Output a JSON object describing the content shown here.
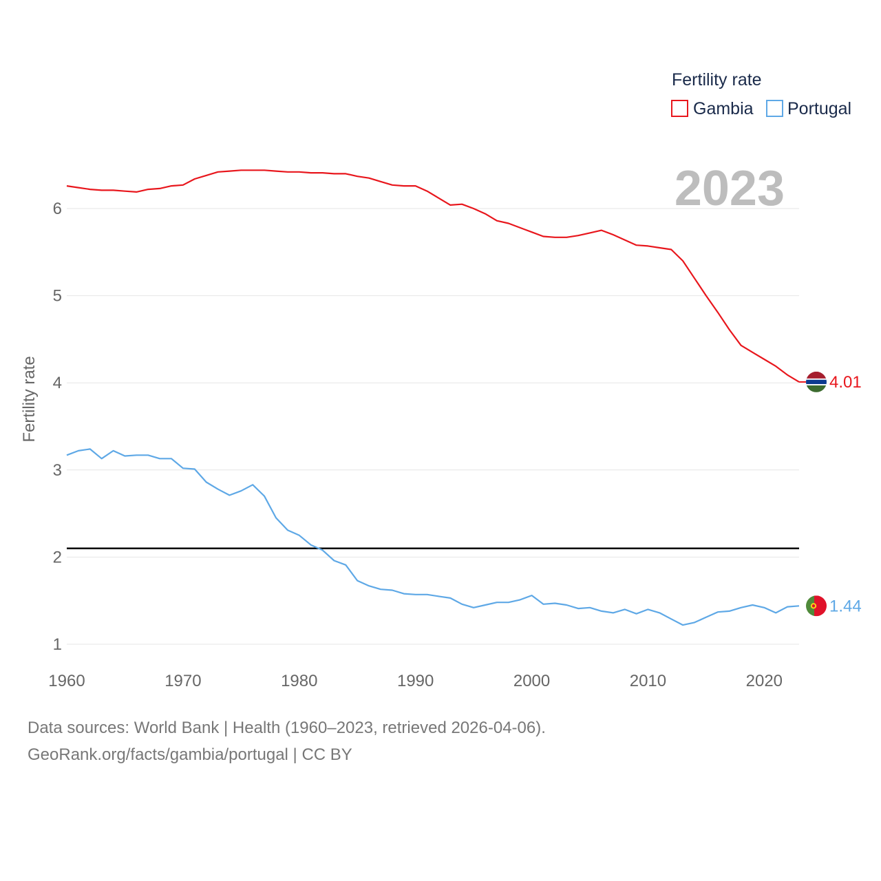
{
  "chart_data": {
    "type": "line",
    "title": "",
    "xlabel": "",
    "ylabel": "Fertility rate",
    "xlim": [
      1960,
      2023
    ],
    "ylim": [
      0.8,
      6.8
    ],
    "x_ticks": [
      1960,
      1970,
      1980,
      1990,
      2000,
      2010,
      2020
    ],
    "y_ticks": [
      1,
      2,
      3,
      4,
      5,
      6
    ],
    "grid": true,
    "year_label": "2023",
    "reference_line": {
      "value": 2.1,
      "color": "#000000"
    },
    "legend": {
      "title": "Fertility rate",
      "position": "top-right"
    },
    "x": [
      1960,
      1961,
      1962,
      1963,
      1964,
      1965,
      1966,
      1967,
      1968,
      1969,
      1970,
      1971,
      1972,
      1973,
      1974,
      1975,
      1976,
      1977,
      1978,
      1979,
      1980,
      1981,
      1982,
      1983,
      1984,
      1985,
      1986,
      1987,
      1988,
      1989,
      1990,
      1991,
      1992,
      1993,
      1994,
      1995,
      1996,
      1997,
      1998,
      1999,
      2000,
      2001,
      2002,
      2003,
      2004,
      2005,
      2006,
      2007,
      2008,
      2009,
      2010,
      2011,
      2012,
      2013,
      2014,
      2015,
      2016,
      2017,
      2018,
      2019,
      2020,
      2021,
      2022,
      2023
    ],
    "series": [
      {
        "name": "Gambia",
        "color": "#e8161c",
        "end_label": "4.01",
        "values": [
          6.26,
          6.24,
          6.22,
          6.21,
          6.21,
          6.2,
          6.19,
          6.22,
          6.23,
          6.26,
          6.27,
          6.34,
          6.38,
          6.42,
          6.43,
          6.44,
          6.44,
          6.44,
          6.43,
          6.42,
          6.42,
          6.41,
          6.41,
          6.4,
          6.4,
          6.37,
          6.35,
          6.31,
          6.27,
          6.26,
          6.26,
          6.2,
          6.12,
          6.04,
          6.05,
          6.0,
          5.94,
          5.86,
          5.83,
          5.78,
          5.73,
          5.68,
          5.67,
          5.67,
          5.69,
          5.72,
          5.75,
          5.7,
          5.64,
          5.58,
          5.57,
          5.55,
          5.53,
          5.4,
          5.2,
          5.0,
          4.81,
          4.61,
          4.43,
          4.35,
          4.27,
          4.19,
          4.09,
          4.01
        ]
      },
      {
        "name": "Portugal",
        "color": "#5ea8e6",
        "end_label": "1.44",
        "values": [
          3.17,
          3.22,
          3.24,
          3.13,
          3.22,
          3.16,
          3.17,
          3.17,
          3.13,
          3.13,
          3.02,
          3.01,
          2.86,
          2.78,
          2.71,
          2.76,
          2.83,
          2.7,
          2.45,
          2.31,
          2.25,
          2.14,
          2.08,
          1.96,
          1.91,
          1.73,
          1.67,
          1.63,
          1.62,
          1.58,
          1.57,
          1.57,
          1.55,
          1.53,
          1.46,
          1.42,
          1.45,
          1.48,
          1.48,
          1.51,
          1.56,
          1.46,
          1.47,
          1.45,
          1.41,
          1.42,
          1.38,
          1.36,
          1.4,
          1.35,
          1.4,
          1.36,
          1.29,
          1.22,
          1.25,
          1.31,
          1.37,
          1.38,
          1.42,
          1.45,
          1.42,
          1.36,
          1.43,
          1.44
        ]
      }
    ]
  },
  "footer": {
    "line1": "Data sources: World Bank | Health (1960–2023, retrieved 2026-04-06).",
    "line2": "GeoRank.org/facts/gambia/portugal | CC BY"
  }
}
